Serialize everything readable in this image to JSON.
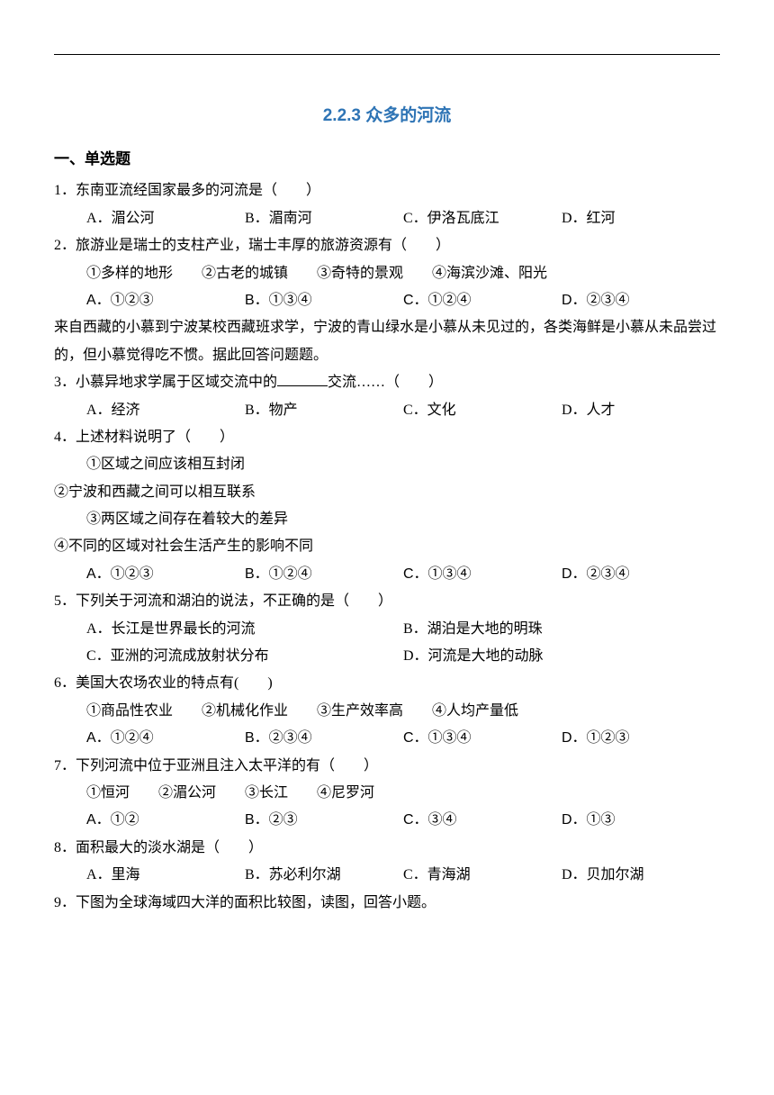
{
  "title": "2.2.3 众多的河流",
  "section_heading": "一、单选题",
  "questions": [
    {
      "num": "1",
      "stem": "．东南亚流经国家最多的河流是（　　）",
      "opts": [
        "A．湄公河",
        "B．湄南河",
        "C．伊洛瓦底江",
        "D．红河"
      ]
    },
    {
      "num": "2",
      "stem": "．旅游业是瑞士的支柱产业，瑞士丰厚的旅游资源有（　　）",
      "subitems": "①多样的地形　　②古老的城镇　　③奇特的景观　　④海滨沙滩、阳光",
      "opts": [
        "A．①②③",
        "B．①③④",
        "C．①②④",
        "D．②③④"
      ]
    }
  ],
  "passage": "来自西藏的小慕到宁波某校西藏班求学，宁波的青山绿水是小慕从未见过的，各类海鲜是小慕从未品尝过的，但小慕觉得吃不惯。据此回答问题题。",
  "q3": {
    "num": "3",
    "pre": "．小慕异地求学属于区域交流中的",
    "post": "交流……（　　）",
    "opts": [
      "A．经济",
      "B．物产",
      "C．文化",
      "D．人才"
    ]
  },
  "q4": {
    "num": "4",
    "stem": "．上述材料说明了（　　）",
    "s1": "①区域之间应该相互封闭",
    "s2": "②宁波和西藏之间可以相互联系",
    "s3": "③两区域之间存在着较大的差异",
    "s4": "④不同的区域对社会生活产生的影响不同",
    "opts": [
      "A．①②③",
      "B．①②④",
      "C．①③④",
      "D．②③④"
    ]
  },
  "q5": {
    "num": "5",
    "stem": "．下列关于河流和湖泊的说法，不正确的是（　　）",
    "opts": [
      "A．长江是世界最长的河流",
      "B．湖泊是大地的明珠",
      "C．亚洲的河流成放射状分布",
      "D．河流是大地的动脉"
    ]
  },
  "q6": {
    "num": "6",
    "stem": "．美国大农场农业的特点有(　　)",
    "subitems": "①商品性农业　　②机械化作业　　③生产效率高　　④人均产量低",
    "opts": [
      "A．①②④",
      "B．②③④",
      "C．①③④",
      "D．①②③"
    ]
  },
  "q7": {
    "num": "7",
    "stem": "．下列河流中位于亚洲且注入太平洋的有（　　）",
    "subitems": "①恒河　　②湄公河　　③长江　　④尼罗河",
    "opts": [
      "A．①②",
      "B．②③",
      "C．③④",
      "D．①③"
    ]
  },
  "q8": {
    "num": "8",
    "stem": "．面积最大的淡水湖是（　　）",
    "opts": [
      "A．里海",
      "B．苏必利尔湖",
      "C．青海湖",
      "D．贝加尔湖"
    ]
  },
  "q9": {
    "num": "9",
    "stem": "．下图为全球海域四大洋的面积比较图，读图，回答小题。"
  }
}
